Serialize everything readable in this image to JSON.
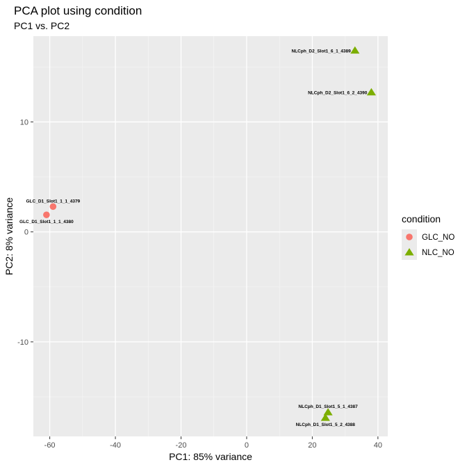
{
  "chart_data": {
    "type": "scatter",
    "title": "PCA plot using condition",
    "subtitle": "PC1 vs. PC2",
    "xlabel": "PC1: 85% variance",
    "ylabel": "PC2: 8% variance",
    "xlim": [
      -65,
      43
    ],
    "ylim": [
      -18.6,
      17.8
    ],
    "x_ticks": [
      -60,
      -40,
      -20,
      0,
      20,
      40
    ],
    "x_tick_labels": [
      "-60",
      "-40",
      "-20",
      "0",
      "20",
      "40"
    ],
    "y_ticks": [
      -10,
      0,
      10
    ],
    "y_tick_labels": [
      "-10",
      "0",
      "10"
    ],
    "grid": true,
    "legend": {
      "title": "condition",
      "position": "right",
      "entries": [
        {
          "label": "GLC_NO",
          "color": "#f8766d",
          "shape": "circle"
        },
        {
          "label": "NLC_NO",
          "color": "#7cae00",
          "shape": "triangle"
        }
      ]
    },
    "series": [
      {
        "name": "GLC_NO",
        "color": "#f8766d",
        "shape": "circle",
        "points": [
          {
            "x": -59.0,
            "y": 2.3,
            "label": "GLC_D1_Slot1_1_1_4379",
            "label_pos": "above"
          },
          {
            "x": -61.0,
            "y": 1.55,
            "label": "GLC_D1_Slot1_1_1_4380",
            "label_pos": "below"
          }
        ]
      },
      {
        "name": "NLC_NO",
        "color": "#7cae00",
        "shape": "triangle",
        "points": [
          {
            "x": 33.0,
            "y": 16.5,
            "label": "NLCph_D2_Slot1_6_1_4389",
            "label_pos": "left"
          },
          {
            "x": 38.0,
            "y": 12.7,
            "label": "NLCph_D2_Slot1_6_2_4390",
            "label_pos": "left"
          },
          {
            "x": 24.8,
            "y": -16.4,
            "label": "NLCph_D1_Slot1_5_1_4387",
            "label_pos": "above"
          },
          {
            "x": 24.0,
            "y": -16.9,
            "label": "NLCph_D1_Slot1_5_2_4388",
            "label_pos": "below"
          }
        ]
      }
    ]
  }
}
